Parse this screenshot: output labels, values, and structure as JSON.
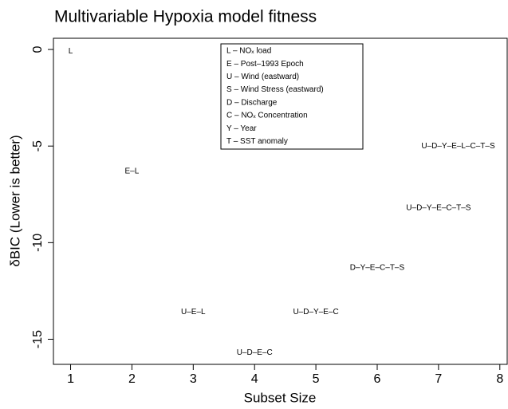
{
  "chart_data": {
    "type": "scatter",
    "title": "Multivariable Hypoxia model fitness",
    "x_label": "Subset Size",
    "y_label": "δBIC  (Lower is better)",
    "x": [
      1,
      2,
      3,
      4,
      5,
      6,
      7,
      7.32
    ],
    "values": [
      -0.1,
      -6.3,
      -13.6,
      -15.7,
      -13.6,
      -11.3,
      -8.2,
      -5.0
    ],
    "labels": [
      "L",
      "E–L",
      "U–E–L",
      "U–D–E–C",
      "U–D–Y–E–C",
      "D–Y–E–C–T–S",
      "U–D–Y–E–C–T–S",
      "U–D–Y–E–L–C–T–S"
    ],
    "xlim": [
      0.72,
      8.12
    ],
    "xticks": [
      1,
      2,
      3,
      4,
      5,
      6,
      7,
      8
    ],
    "ylim": [
      -16.3,
      0.58
    ],
    "yticks": [
      0,
      -5,
      -10,
      -15
    ],
    "legend_entries": [
      "L – NOₓ load",
      "E – Post–1993 Epoch",
      "U – Wind (eastward)",
      "S – Wind Stress (eastward)",
      "D – Discharge",
      "C – NOₓ Concentration",
      "Y – Year",
      "T – SST anomaly"
    ]
  }
}
